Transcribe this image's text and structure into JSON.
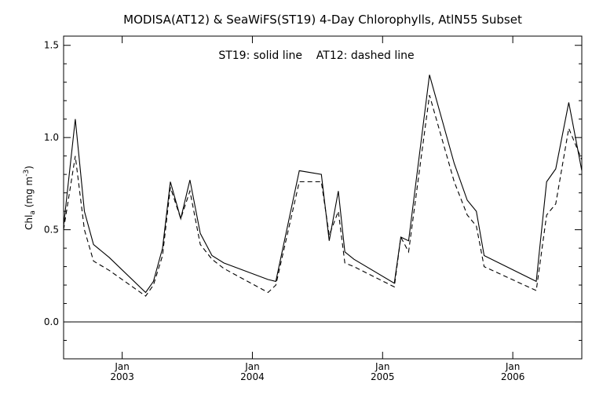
{
  "chart_data": {
    "type": "line",
    "title": "MODISA(AT12) & SeaWiFS(ST19) 4-Day Chlorophylls, AtlN55 Subset",
    "annotation": "ST19: solid line    AT12: dashed line",
    "ylabel": "Chl",
    "ylabel_subscript": "a",
    "ylabel_unit_open": " (mg m",
    "ylabel_unit_exp": "-3",
    "ylabel_unit_close": ")",
    "ylim": [
      -0.2,
      1.55
    ],
    "xlim": [
      2002.55,
      2006.53
    ],
    "yticks": [
      "0.0",
      "0.5",
      "1.0",
      "1.5"
    ],
    "ytick_values": [
      0.0,
      0.5,
      1.0,
      1.5
    ],
    "xticks_month": [
      "Jan",
      "Jan",
      "Jan",
      "Jan"
    ],
    "xticks_year": [
      "2003",
      "2004",
      "2005",
      "2006"
    ],
    "xtick_values": [
      2003.0,
      2004.0,
      2005.0,
      2006.0
    ],
    "zero_line": true,
    "grid": false,
    "series": [
      {
        "name": "ST19",
        "style": "solid",
        "x": [
          2002.55,
          2002.64,
          2002.71,
          2002.78,
          2002.9,
          2003.18,
          2003.24,
          2003.31,
          2003.37,
          2003.45,
          2003.52,
          2003.6,
          2003.69,
          2003.78,
          2004.12,
          2004.18,
          2004.36,
          2004.53,
          2004.59,
          2004.66,
          2004.71,
          2004.78,
          2005.09,
          2005.14,
          2005.2,
          2005.36,
          2005.55,
          2005.65,
          2005.72,
          2005.78,
          2006.18,
          2006.26,
          2006.33,
          2006.43,
          2006.53
        ],
        "values": [
          0.52,
          1.1,
          0.6,
          0.42,
          0.35,
          0.16,
          0.22,
          0.4,
          0.76,
          0.56,
          0.77,
          0.48,
          0.36,
          0.32,
          0.23,
          0.22,
          0.82,
          0.8,
          0.44,
          0.71,
          0.38,
          0.34,
          0.21,
          0.46,
          0.44,
          1.34,
          0.86,
          0.66,
          0.6,
          0.36,
          0.22,
          0.76,
          0.83,
          1.19,
          0.82
        ]
      },
      {
        "name": "AT12",
        "style": "dashed",
        "x": [
          2002.55,
          2002.64,
          2002.71,
          2002.78,
          2002.9,
          2003.18,
          2003.24,
          2003.31,
          2003.37,
          2003.45,
          2003.52,
          2003.6,
          2003.69,
          2003.78,
          2004.12,
          2004.18,
          2004.36,
          2004.53,
          2004.59,
          2004.66,
          2004.71,
          2004.78,
          2005.09,
          2005.14,
          2005.2,
          2005.36,
          2005.55,
          2005.65,
          2005.72,
          2005.78,
          2006.18,
          2006.26,
          2006.33,
          2006.43,
          2006.53
        ],
        "values": [
          0.5,
          0.9,
          0.5,
          0.33,
          0.28,
          0.14,
          0.2,
          0.36,
          0.73,
          0.56,
          0.71,
          0.42,
          0.34,
          0.29,
          0.16,
          0.2,
          0.76,
          0.76,
          0.47,
          0.6,
          0.32,
          0.3,
          0.19,
          0.46,
          0.38,
          1.23,
          0.76,
          0.58,
          0.52,
          0.3,
          0.17,
          0.58,
          0.64,
          1.05,
          0.88
        ]
      }
    ]
  }
}
